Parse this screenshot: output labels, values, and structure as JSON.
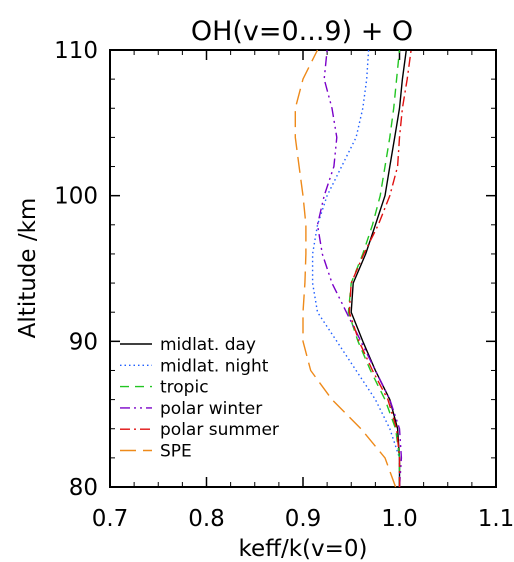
{
  "chart_data": {
    "type": "line",
    "title": "OH(v=0...9) + O",
    "xlabel": "keff/k(v=0)",
    "ylabel": "Altitude /km",
    "xlim": [
      0.7,
      1.1
    ],
    "ylim": [
      80,
      110
    ],
    "x_ticks": [
      "0.7",
      "0.8",
      "0.9",
      "1.0",
      "1.1"
    ],
    "y_ticks": [
      "80",
      "90",
      "100",
      "110"
    ],
    "legend_position": "bottom-left",
    "grid": false,
    "series": [
      {
        "name": "midlat. day",
        "color": "#000000",
        "dash": "solid",
        "points": [
          [
            1.0,
            80
          ],
          [
            1.0,
            82
          ],
          [
            0.998,
            84
          ],
          [
            0.99,
            86
          ],
          [
            0.975,
            88
          ],
          [
            0.962,
            90
          ],
          [
            0.95,
            92
          ],
          [
            0.952,
            94
          ],
          [
            0.965,
            96
          ],
          [
            0.975,
            98
          ],
          [
            0.985,
            100
          ],
          [
            0.99,
            102
          ],
          [
            0.995,
            104
          ],
          [
            1.0,
            106
          ],
          [
            1.003,
            108
          ],
          [
            1.007,
            110
          ]
        ]
      },
      {
        "name": "midlat. night",
        "color": "#1f5fff",
        "dash": "dotted",
        "points": [
          [
            1.0,
            80
          ],
          [
            1.0,
            82
          ],
          [
            0.99,
            84
          ],
          [
            0.975,
            86
          ],
          [
            0.955,
            88
          ],
          [
            0.935,
            90
          ],
          [
            0.915,
            92
          ],
          [
            0.91,
            94
          ],
          [
            0.91,
            96
          ],
          [
            0.915,
            98
          ],
          [
            0.925,
            100
          ],
          [
            0.94,
            102
          ],
          [
            0.955,
            104
          ],
          [
            0.962,
            106
          ],
          [
            0.966,
            108
          ],
          [
            0.968,
            110
          ]
        ]
      },
      {
        "name": "tropic",
        "color": "#22c522",
        "dash": "dashed",
        "points": [
          [
            1.0,
            80
          ],
          [
            1.0,
            82
          ],
          [
            0.996,
            84
          ],
          [
            0.985,
            86
          ],
          [
            0.97,
            88
          ],
          [
            0.957,
            90
          ],
          [
            0.947,
            92
          ],
          [
            0.95,
            94
          ],
          [
            0.962,
            96
          ],
          [
            0.972,
            98
          ],
          [
            0.98,
            100
          ],
          [
            0.985,
            102
          ],
          [
            0.99,
            104
          ],
          [
            0.994,
            106
          ],
          [
            0.997,
            108
          ],
          [
            1.0,
            110
          ]
        ]
      },
      {
        "name": "polar winter",
        "color": "#7a00c8",
        "dash": "dashdotdot",
        "points": [
          [
            1.0,
            80
          ],
          [
            1.002,
            82
          ],
          [
            1.0,
            84
          ],
          [
            0.99,
            86
          ],
          [
            0.975,
            88
          ],
          [
            0.96,
            90
          ],
          [
            0.945,
            92
          ],
          [
            0.93,
            94
          ],
          [
            0.92,
            96
          ],
          [
            0.915,
            98
          ],
          [
            0.922,
            100
          ],
          [
            0.932,
            102
          ],
          [
            0.935,
            104
          ],
          [
            0.93,
            106
          ],
          [
            0.922,
            108
          ],
          [
            0.925,
            110
          ]
        ]
      },
      {
        "name": "polar summer",
        "color": "#e01010",
        "dash": "dashdot",
        "points": [
          [
            1.0,
            80
          ],
          [
            1.0,
            82
          ],
          [
            0.997,
            84
          ],
          [
            0.988,
            86
          ],
          [
            0.972,
            88
          ],
          [
            0.958,
            90
          ],
          [
            0.948,
            92
          ],
          [
            0.95,
            94
          ],
          [
            0.963,
            96
          ],
          [
            0.978,
            98
          ],
          [
            0.99,
            100
          ],
          [
            0.998,
            102
          ],
          [
            1.0,
            104
          ],
          [
            1.003,
            106
          ],
          [
            1.008,
            108
          ],
          [
            1.012,
            110
          ]
        ]
      },
      {
        "name": "SPE",
        "color": "#ee8a1a",
        "dash": "longdash",
        "points": [
          [
            0.996,
            80
          ],
          [
            0.985,
            82
          ],
          [
            0.96,
            84
          ],
          [
            0.93,
            86
          ],
          [
            0.908,
            88
          ],
          [
            0.9,
            90
          ],
          [
            0.9,
            92
          ],
          [
            0.902,
            94
          ],
          [
            0.903,
            96
          ],
          [
            0.903,
            98
          ],
          [
            0.9,
            100
          ],
          [
            0.896,
            102
          ],
          [
            0.892,
            104
          ],
          [
            0.892,
            106
          ],
          [
            0.9,
            108
          ],
          [
            0.915,
            110
          ]
        ]
      }
    ]
  }
}
